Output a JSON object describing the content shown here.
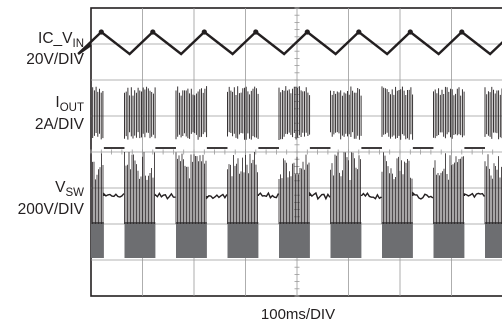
{
  "chart_data": {
    "type": "line",
    "title": "",
    "xlabel": "100ms/DIV",
    "ylabel": "",
    "x_divisions": 8,
    "y_divisions": 8,
    "grid": true,
    "channels": [
      {
        "name_main": "IC_V",
        "name_sub": "IN",
        "scale": "20V/DIV",
        "waveform": "triangle",
        "period_ms": 100,
        "peak_time_ms": [
          20,
          120,
          220,
          320,
          420,
          520,
          620,
          720
        ]
      },
      {
        "name_main": "I",
        "name_sub": "OUT",
        "scale": "2A/DIV",
        "waveform": "burst",
        "period_ms": 100,
        "burst_on_ms": 60,
        "baseline_level": "0A"
      },
      {
        "name_main": "V",
        "name_sub": "SW",
        "scale": "200V/DIV",
        "waveform": "burst",
        "period_ms": 100,
        "burst_on_ms": 60
      }
    ]
  }
}
